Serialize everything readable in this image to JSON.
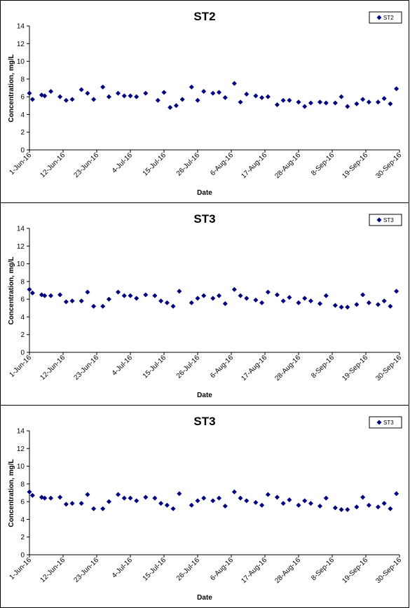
{
  "chart_data": [
    {
      "type": "scatter",
      "title": "ST2",
      "xlabel": "Date",
      "ylabel": "Concentration, mg/L",
      "ylim": [
        0,
        14
      ],
      "yticks": [
        "0",
        "2",
        "4",
        "6",
        "8",
        "10",
        "12",
        "14"
      ],
      "xlim": [
        "2016-06-01",
        "2016-09-30"
      ],
      "xtick_labels": [
        "1-Jun-16",
        "12-Jun-16",
        "23-Jun-16",
        "4-Jul-16",
        "15-Jul-16",
        "26-Jul-16",
        "6-Aug-16",
        "17-Aug-16",
        "28-Aug-16",
        "8-Sep-16",
        "19-Sep-16",
        "30-Sep-16"
      ],
      "grid": false,
      "legend_position": "top-right",
      "series": [
        {
          "name": "ST2",
          "color": "#000080",
          "points": [
            {
              "x": "2016-06-01",
              "y": 6.4
            },
            {
              "x": "2016-06-02",
              "y": 5.7
            },
            {
              "x": "2016-06-05",
              "y": 6.2
            },
            {
              "x": "2016-06-06",
              "y": 6.1
            },
            {
              "x": "2016-06-08",
              "y": 6.6
            },
            {
              "x": "2016-06-11",
              "y": 6.0
            },
            {
              "x": "2016-06-13",
              "y": 5.6
            },
            {
              "x": "2016-06-15",
              "y": 5.7
            },
            {
              "x": "2016-06-18",
              "y": 6.8
            },
            {
              "x": "2016-06-20",
              "y": 6.4
            },
            {
              "x": "2016-06-22",
              "y": 5.7
            },
            {
              "x": "2016-06-25",
              "y": 7.1
            },
            {
              "x": "2016-06-27",
              "y": 6.0
            },
            {
              "x": "2016-06-30",
              "y": 6.4
            },
            {
              "x": "2016-07-02",
              "y": 6.1
            },
            {
              "x": "2016-07-04",
              "y": 6.1
            },
            {
              "x": "2016-07-06",
              "y": 6.0
            },
            {
              "x": "2016-07-09",
              "y": 6.4
            },
            {
              "x": "2016-07-13",
              "y": 5.6
            },
            {
              "x": "2016-07-15",
              "y": 6.5
            },
            {
              "x": "2016-07-17",
              "y": 4.8
            },
            {
              "x": "2016-07-19",
              "y": 5.0
            },
            {
              "x": "2016-07-21",
              "y": 5.7
            },
            {
              "x": "2016-07-24",
              "y": 7.1
            },
            {
              "x": "2016-07-26",
              "y": 5.6
            },
            {
              "x": "2016-07-28",
              "y": 6.6
            },
            {
              "x": "2016-07-31",
              "y": 6.4
            },
            {
              "x": "2016-08-02",
              "y": 6.5
            },
            {
              "x": "2016-08-04",
              "y": 5.9
            },
            {
              "x": "2016-08-07",
              "y": 7.5
            },
            {
              "x": "2016-08-09",
              "y": 5.4
            },
            {
              "x": "2016-08-11",
              "y": 6.3
            },
            {
              "x": "2016-08-14",
              "y": 6.1
            },
            {
              "x": "2016-08-16",
              "y": 5.9
            },
            {
              "x": "2016-08-18",
              "y": 6.0
            },
            {
              "x": "2016-08-21",
              "y": 5.1
            },
            {
              "x": "2016-08-23",
              "y": 5.6
            },
            {
              "x": "2016-08-25",
              "y": 5.6
            },
            {
              "x": "2016-08-28",
              "y": 5.4
            },
            {
              "x": "2016-08-30",
              "y": 4.9
            },
            {
              "x": "2016-09-01",
              "y": 5.3
            },
            {
              "x": "2016-09-04",
              "y": 5.4
            },
            {
              "x": "2016-09-06",
              "y": 5.3
            },
            {
              "x": "2016-09-09",
              "y": 5.3
            },
            {
              "x": "2016-09-11",
              "y": 6.0
            },
            {
              "x": "2016-09-13",
              "y": 4.9
            },
            {
              "x": "2016-09-16",
              "y": 5.2
            },
            {
              "x": "2016-09-18",
              "y": 5.7
            },
            {
              "x": "2016-09-20",
              "y": 5.4
            },
            {
              "x": "2016-09-23",
              "y": 5.4
            },
            {
              "x": "2016-09-25",
              "y": 5.8
            },
            {
              "x": "2016-09-27",
              "y": 5.2
            },
            {
              "x": "2016-09-29",
              "y": 6.9
            }
          ]
        }
      ]
    },
    {
      "type": "scatter",
      "title": "ST3",
      "xlabel": "Date",
      "ylabel": "Concentration, mg/L",
      "ylim": [
        0,
        14
      ],
      "yticks": [
        "0",
        "2",
        "4",
        "6",
        "8",
        "10",
        "12",
        "14"
      ],
      "xlim": [
        "2016-06-01",
        "2016-09-30"
      ],
      "xtick_labels": [
        "1-Jun-16",
        "12-Jun-16",
        "23-Jun-16",
        "4-Jul-16",
        "15-Jul-16",
        "26-Jul-16",
        "6-Aug-16",
        "17-Aug-16",
        "28-Aug-16",
        "8-Sep-16",
        "19-Sep-16",
        "30-Sep-16"
      ],
      "grid": false,
      "legend_position": "top-right",
      "series": [
        {
          "name": "ST3",
          "color": "#000080",
          "points": [
            {
              "x": "2016-06-01",
              "y": 7.1
            },
            {
              "x": "2016-06-02",
              "y": 6.7
            },
            {
              "x": "2016-06-05",
              "y": 6.5
            },
            {
              "x": "2016-06-06",
              "y": 6.4
            },
            {
              "x": "2016-06-08",
              "y": 6.4
            },
            {
              "x": "2016-06-11",
              "y": 6.5
            },
            {
              "x": "2016-06-13",
              "y": 5.7
            },
            {
              "x": "2016-06-15",
              "y": 5.8
            },
            {
              "x": "2016-06-18",
              "y": 5.8
            },
            {
              "x": "2016-06-20",
              "y": 6.8
            },
            {
              "x": "2016-06-22",
              "y": 5.2
            },
            {
              "x": "2016-06-25",
              "y": 5.2
            },
            {
              "x": "2016-06-27",
              "y": 6.0
            },
            {
              "x": "2016-06-30",
              "y": 6.8
            },
            {
              "x": "2016-07-02",
              "y": 6.4
            },
            {
              "x": "2016-07-04",
              "y": 6.4
            },
            {
              "x": "2016-07-06",
              "y": 6.1
            },
            {
              "x": "2016-07-09",
              "y": 6.5
            },
            {
              "x": "2016-07-12",
              "y": 6.4
            },
            {
              "x": "2016-07-14",
              "y": 5.8
            },
            {
              "x": "2016-07-16",
              "y": 5.6
            },
            {
              "x": "2016-07-18",
              "y": 5.2
            },
            {
              "x": "2016-07-20",
              "y": 6.9
            },
            {
              "x": "2016-07-24",
              "y": 5.6
            },
            {
              "x": "2016-07-26",
              "y": 6.1
            },
            {
              "x": "2016-07-28",
              "y": 6.4
            },
            {
              "x": "2016-07-31",
              "y": 6.1
            },
            {
              "x": "2016-08-02",
              "y": 6.4
            },
            {
              "x": "2016-08-04",
              "y": 5.5
            },
            {
              "x": "2016-08-07",
              "y": 7.1
            },
            {
              "x": "2016-08-09",
              "y": 6.4
            },
            {
              "x": "2016-08-11",
              "y": 6.1
            },
            {
              "x": "2016-08-14",
              "y": 5.9
            },
            {
              "x": "2016-08-16",
              "y": 5.6
            },
            {
              "x": "2016-08-18",
              "y": 6.8
            },
            {
              "x": "2016-08-21",
              "y": 6.5
            },
            {
              "x": "2016-08-23",
              "y": 5.8
            },
            {
              "x": "2016-08-25",
              "y": 6.2
            },
            {
              "x": "2016-08-28",
              "y": 5.6
            },
            {
              "x": "2016-08-30",
              "y": 6.1
            },
            {
              "x": "2016-09-01",
              "y": 5.8
            },
            {
              "x": "2016-09-04",
              "y": 5.5
            },
            {
              "x": "2016-09-06",
              "y": 6.4
            },
            {
              "x": "2016-09-09",
              "y": 5.3
            },
            {
              "x": "2016-09-11",
              "y": 5.1
            },
            {
              "x": "2016-09-13",
              "y": 5.1
            },
            {
              "x": "2016-09-16",
              "y": 5.4
            },
            {
              "x": "2016-09-18",
              "y": 6.5
            },
            {
              "x": "2016-09-20",
              "y": 5.6
            },
            {
              "x": "2016-09-23",
              "y": 5.4
            },
            {
              "x": "2016-09-25",
              "y": 5.8
            },
            {
              "x": "2016-09-27",
              "y": 5.2
            },
            {
              "x": "2016-09-29",
              "y": 6.9
            }
          ]
        }
      ]
    },
    {
      "type": "scatter",
      "title": "ST3",
      "xlabel": "Date",
      "ylabel": "Concentration, mg/L",
      "ylim": [
        0,
        14
      ],
      "yticks": [
        "0",
        "2",
        "4",
        "6",
        "8",
        "10",
        "12",
        "14"
      ],
      "xlim": [
        "2016-06-01",
        "2016-09-30"
      ],
      "xtick_labels": [
        "1-Jun-16",
        "12-Jun-16",
        "23-Jun-16",
        "4-Jul-16",
        "15-Jul-16",
        "26-Jul-16",
        "6-Aug-16",
        "17-Aug-16",
        "28-Aug-16",
        "8-Sep-16",
        "19-Sep-16",
        "30-Sep-16"
      ],
      "grid": false,
      "legend_position": "top-right",
      "series": [
        {
          "name": "ST3",
          "color": "#000080",
          "points": [
            {
              "x": "2016-06-01",
              "y": 7.1
            },
            {
              "x": "2016-06-02",
              "y": 6.7
            },
            {
              "x": "2016-06-05",
              "y": 6.5
            },
            {
              "x": "2016-06-06",
              "y": 6.4
            },
            {
              "x": "2016-06-08",
              "y": 6.4
            },
            {
              "x": "2016-06-11",
              "y": 6.5
            },
            {
              "x": "2016-06-13",
              "y": 5.7
            },
            {
              "x": "2016-06-15",
              "y": 5.8
            },
            {
              "x": "2016-06-18",
              "y": 5.8
            },
            {
              "x": "2016-06-20",
              "y": 6.8
            },
            {
              "x": "2016-06-22",
              "y": 5.2
            },
            {
              "x": "2016-06-25",
              "y": 5.2
            },
            {
              "x": "2016-06-27",
              "y": 6.0
            },
            {
              "x": "2016-06-30",
              "y": 6.8
            },
            {
              "x": "2016-07-02",
              "y": 6.4
            },
            {
              "x": "2016-07-04",
              "y": 6.4
            },
            {
              "x": "2016-07-06",
              "y": 6.1
            },
            {
              "x": "2016-07-09",
              "y": 6.5
            },
            {
              "x": "2016-07-12",
              "y": 6.4
            },
            {
              "x": "2016-07-14",
              "y": 5.8
            },
            {
              "x": "2016-07-16",
              "y": 5.6
            },
            {
              "x": "2016-07-18",
              "y": 5.2
            },
            {
              "x": "2016-07-20",
              "y": 6.9
            },
            {
              "x": "2016-07-24",
              "y": 5.6
            },
            {
              "x": "2016-07-26",
              "y": 6.1
            },
            {
              "x": "2016-07-28",
              "y": 6.4
            },
            {
              "x": "2016-07-31",
              "y": 6.1
            },
            {
              "x": "2016-08-02",
              "y": 6.4
            },
            {
              "x": "2016-08-04",
              "y": 5.5
            },
            {
              "x": "2016-08-07",
              "y": 7.1
            },
            {
              "x": "2016-08-09",
              "y": 6.4
            },
            {
              "x": "2016-08-11",
              "y": 6.1
            },
            {
              "x": "2016-08-14",
              "y": 5.9
            },
            {
              "x": "2016-08-16",
              "y": 5.6
            },
            {
              "x": "2016-08-18",
              "y": 6.8
            },
            {
              "x": "2016-08-21",
              "y": 6.5
            },
            {
              "x": "2016-08-23",
              "y": 5.8
            },
            {
              "x": "2016-08-25",
              "y": 6.2
            },
            {
              "x": "2016-08-28",
              "y": 5.6
            },
            {
              "x": "2016-08-30",
              "y": 6.1
            },
            {
              "x": "2016-09-01",
              "y": 5.8
            },
            {
              "x": "2016-09-04",
              "y": 5.5
            },
            {
              "x": "2016-09-06",
              "y": 6.4
            },
            {
              "x": "2016-09-09",
              "y": 5.3
            },
            {
              "x": "2016-09-11",
              "y": 5.1
            },
            {
              "x": "2016-09-13",
              "y": 5.1
            },
            {
              "x": "2016-09-16",
              "y": 5.4
            },
            {
              "x": "2016-09-18",
              "y": 6.5
            },
            {
              "x": "2016-09-20",
              "y": 5.6
            },
            {
              "x": "2016-09-23",
              "y": 5.4
            },
            {
              "x": "2016-09-25",
              "y": 5.8
            },
            {
              "x": "2016-09-27",
              "y": 5.2
            },
            {
              "x": "2016-09-29",
              "y": 6.9
            }
          ]
        }
      ]
    }
  ]
}
